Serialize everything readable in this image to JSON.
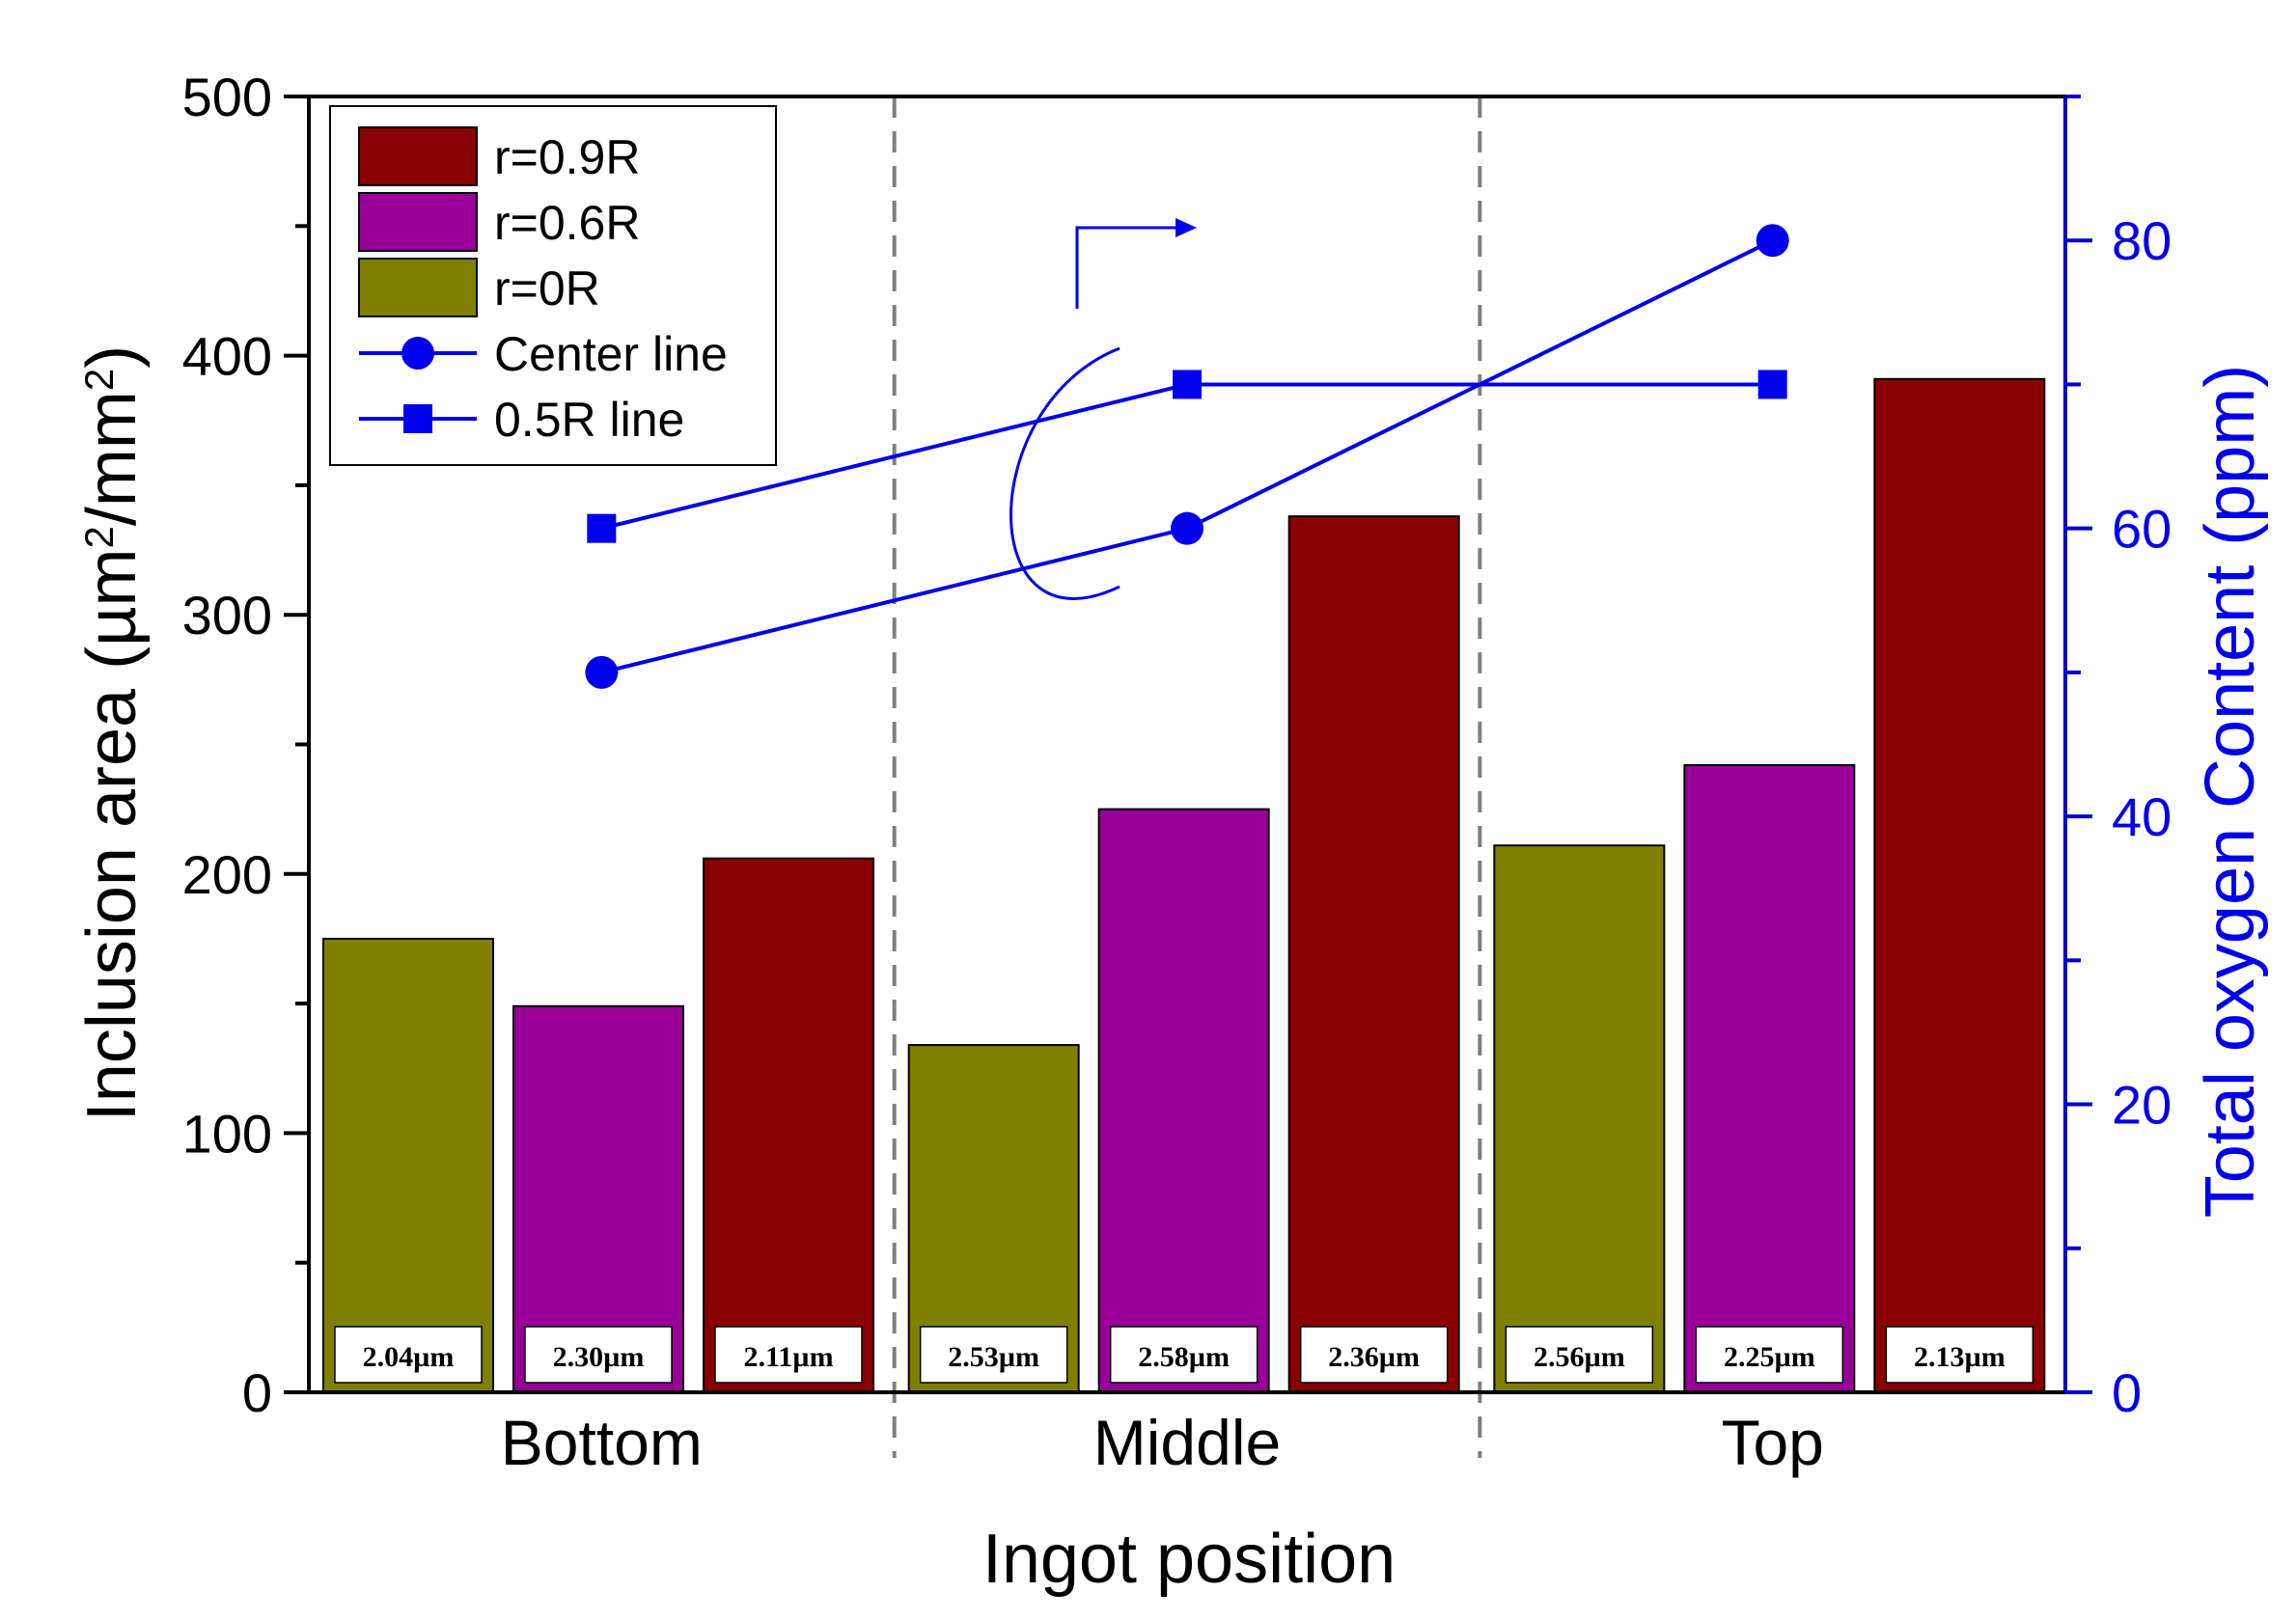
{
  "chart_data": {
    "type": "bar",
    "xlabel": "Ingot position",
    "ylabel": "Inclusion area",
    "ylabel_unit_parts": [
      "(µm",
      "2",
      "/mm",
      "2",
      ")"
    ],
    "y2label": "Total oxygen Content (ppm)",
    "ylim": [
      0,
      500
    ],
    "y2lim": [
      0,
      90
    ],
    "yticks": [
      0,
      100,
      200,
      300,
      400,
      500
    ],
    "y2ticks": [
      0,
      20,
      40,
      60,
      80
    ],
    "categories": [
      "Bottom",
      "Middle",
      "Top"
    ],
    "bars": [
      {
        "series": "r=0R",
        "category": "Bottom",
        "value": 175,
        "label": "2.04µm"
      },
      {
        "series": "r=0.6R",
        "category": "Bottom",
        "value": 149,
        "label": "2.30µm"
      },
      {
        "series": "r=0.9R",
        "category": "Bottom",
        "value": 206,
        "label": "2.11µm"
      },
      {
        "series": "r=0R",
        "category": "Middle",
        "value": 134,
        "label": "2.53µm"
      },
      {
        "series": "r=0.6R",
        "category": "Middle",
        "value": 225,
        "label": "2.58µm"
      },
      {
        "series": "r=0.9R",
        "category": "Middle",
        "value": 338,
        "label": "2.36µm"
      },
      {
        "series": "r=0R",
        "category": "Top",
        "value": 211,
        "label": "2.56µm"
      },
      {
        "series": "r=0.6R",
        "category": "Top",
        "value": 242,
        "label": "2.25µm"
      },
      {
        "series": "r=0.9R",
        "category": "Top",
        "value": 391,
        "label": "2.13µm"
      }
    ],
    "bar_series": [
      {
        "name": "r=0.9R",
        "color": "#8b0000"
      },
      {
        "name": "r=0.6R",
        "color": "#990099"
      },
      {
        "name": "r=0R",
        "color": "#808000"
      }
    ],
    "line_series": [
      {
        "name": "Center line",
        "marker": "circle",
        "axis": "right",
        "color": "#0000ee",
        "values": [
          50,
          60,
          80
        ]
      },
      {
        "name": "0.5R line",
        "marker": "square",
        "axis": "right",
        "color": "#0000ee",
        "values": [
          60,
          70,
          70
        ]
      }
    ],
    "legend": {
      "position": "top-left",
      "items": [
        "r=0.9R",
        "r=0.6R",
        "r=0R",
        "Center line",
        "0.5R line"
      ]
    },
    "grid": false
  }
}
